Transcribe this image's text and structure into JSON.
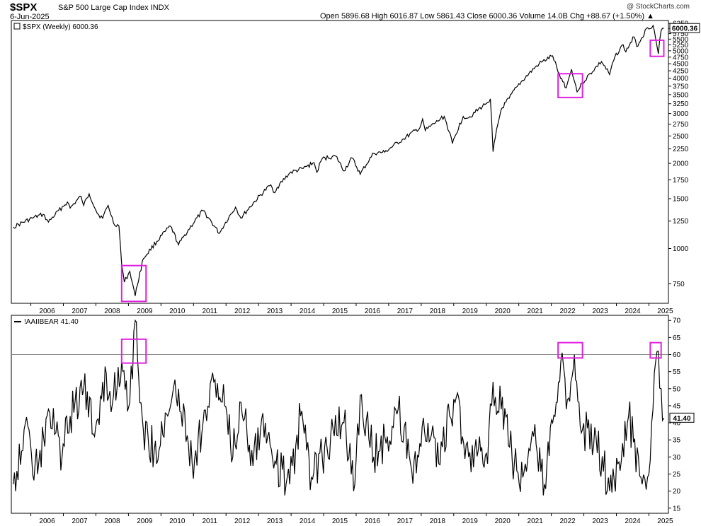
{
  "header": {
    "symbol": "$SPX",
    "name": "S&P 500 Large Cap Index INDX",
    "date": "6-Jun-2025",
    "ohlc": "Open 5896.68   High 6016.87   Low 5861.43   Close 6000.36   Volume 14.0B   Chg +88.67 (+1.50%) ▲",
    "logo": "@ StockCharts.com"
  },
  "colors": {
    "line": "#000000",
    "highlight": "#e020e0",
    "grid": "#000000",
    "refline": "#888888"
  },
  "chart_data": [
    {
      "type": "line",
      "panel": "price",
      "legend": "$SPX (Weekly) 6000.36",
      "last_value_label": "6000.36",
      "scale": "log",
      "ylim": [
        640,
        6400
      ],
      "yticks": [
        750,
        1000,
        1250,
        1500,
        1750,
        2000,
        2250,
        2500,
        2750,
        3000,
        3250,
        3500,
        3750,
        4000,
        4250,
        4500,
        4750,
        5000,
        5250,
        5500,
        5750,
        6000,
        6250
      ],
      "x_tick_labels": [
        "2006",
        "2007",
        "2008",
        "2009",
        "2010",
        "2011",
        "2012",
        "2013",
        "2014",
        "2015",
        "2016",
        "2017",
        "2018",
        "2019",
        "2020",
        "2021",
        "2022",
        "2023",
        "2024",
        "2025"
      ],
      "series": [
        {
          "x": [
            "2005-06",
            "2006-01",
            "2006-05",
            "2006-07",
            "2007-02",
            "2007-03",
            "2007-07",
            "2007-08",
            "2007-10",
            "2008-01",
            "2008-03",
            "2008-05",
            "2008-07",
            "2008-09",
            "2008-10",
            "2008-11",
            "2009-01",
            "2009-03",
            "2009-06",
            "2010-04",
            "2010-07",
            "2011-04",
            "2011-10",
            "2012-04",
            "2012-06",
            "2013-05",
            "2013-06",
            "2013-12",
            "2014-05",
            "2014-09",
            "2014-10",
            "2014-12",
            "2015-05",
            "2015-08",
            "2015-11",
            "2016-02",
            "2016-07",
            "2016-11",
            "2017-06",
            "2017-12",
            "2018-01",
            "2018-02",
            "2018-09",
            "2018-12",
            "2019-04",
            "2019-06",
            "2019-12",
            "2020-02",
            "2020-03",
            "2020-06",
            "2020-09",
            "2020-12",
            "2021-08",
            "2022-01",
            "2022-03",
            "2022-06",
            "2022-08",
            "2022-10",
            "2022-12",
            "2023-07",
            "2023-10",
            "2023-12",
            "2024-03",
            "2024-04",
            "2024-07",
            "2024-08",
            "2024-12",
            "2025-02",
            "2025-04",
            "2025-05",
            "2025-06"
          ],
          "y": [
            1190,
            1280,
            1320,
            1240,
            1460,
            1390,
            1530,
            1420,
            1560,
            1330,
            1280,
            1420,
            1230,
            1200,
            880,
            760,
            830,
            680,
            920,
            1200,
            1030,
            1360,
            1130,
            1400,
            1280,
            1680,
            1580,
            1850,
            1920,
            2010,
            1860,
            2080,
            2120,
            1880,
            2090,
            1830,
            2170,
            2190,
            2440,
            2670,
            2870,
            2610,
            2930,
            2350,
            2930,
            2900,
            3230,
            3380,
            2200,
            3100,
            3400,
            3750,
            4500,
            4800,
            4200,
            3700,
            4300,
            3580,
            3850,
            4580,
            4120,
            4780,
            5250,
            4960,
            5600,
            5180,
            6040,
            6140,
            4880,
            5900,
            6000
          ]
        }
      ]
    },
    {
      "type": "line",
      "panel": "indicator",
      "legend": "!AAIIBEAR 41.40",
      "last_value_label": "41.40",
      "ylim": [
        13.5,
        71.5
      ],
      "yticks": [
        15,
        20,
        25,
        30,
        35,
        40,
        45,
        50,
        55,
        60,
        65,
        70
      ],
      "reference_line": 60,
      "x_tick_labels": [
        "2006",
        "2007",
        "2008",
        "2009",
        "2010",
        "2011",
        "2012",
        "2013",
        "2014",
        "2015",
        "2016",
        "2017",
        "2018",
        "2019",
        "2020",
        "2021",
        "2022",
        "2023",
        "2024",
        "2025"
      ],
      "series": [
        {
          "x": [
            "2005-06",
            "2005-10",
            "2006-03",
            "2006-07",
            "2006-12",
            "2007-03",
            "2007-08",
            "2007-12",
            "2008-03",
            "2008-07",
            "2008-10",
            "2009-01",
            "2009-03",
            "2009-06",
            "2009-10",
            "2010-03",
            "2010-07",
            "2010-12",
            "2011-04",
            "2011-08",
            "2011-12",
            "2012-03",
            "2012-06",
            "2012-10",
            "2013-03",
            "2013-07",
            "2013-12",
            "2014-04",
            "2014-08",
            "2014-12",
            "2015-04",
            "2015-08",
            "2015-12",
            "2016-02",
            "2016-07",
            "2016-12",
            "2017-04",
            "2017-09",
            "2017-12",
            "2018-03",
            "2018-07",
            "2018-11",
            "2019-01",
            "2019-06",
            "2019-10",
            "2020-01",
            "2020-03",
            "2020-06",
            "2020-10",
            "2021-02",
            "2021-06",
            "2021-10",
            "2022-01",
            "2022-04",
            "2022-06",
            "2022-09",
            "2022-12",
            "2023-05",
            "2023-10",
            "2024-01",
            "2024-05",
            "2024-10",
            "2024-12",
            "2025-02",
            "2025-03",
            "2025-04",
            "2025-05",
            "2025-06"
          ],
          "y": [
            22,
            38,
            25,
            44,
            30,
            42,
            50,
            36,
            52,
            48,
            58,
            46,
            70,
            38,
            32,
            42,
            50,
            28,
            40,
            52,
            45,
            30,
            46,
            32,
            40,
            28,
            22,
            42,
            24,
            30,
            38,
            40,
            22,
            48,
            30,
            36,
            44,
            26,
            34,
            40,
            28,
            42,
            46,
            30,
            36,
            28,
            52,
            44,
            30,
            24,
            36,
            22,
            40,
            58,
            44,
            60,
            38,
            36,
            20,
            28,
            42,
            22,
            24,
            44,
            58,
            61,
            50,
            41.4
          ]
        }
      ]
    }
  ]
}
